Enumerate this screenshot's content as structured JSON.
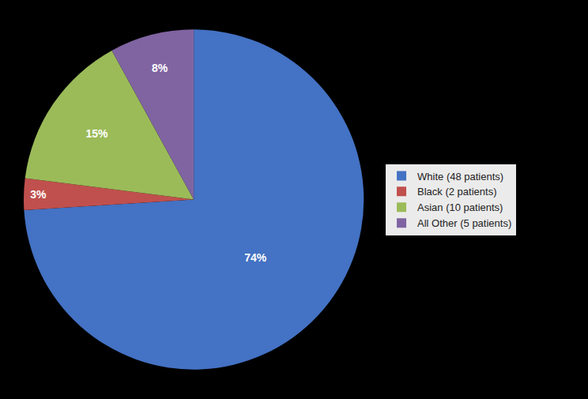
{
  "chart_data": {
    "type": "pie",
    "categories": [
      "White (48 patients)",
      "Black (2 patients)",
      "Asian (10 patients)",
      "All Other (5 patients)"
    ],
    "values": [
      74,
      3,
      15,
      8
    ],
    "value_labels": [
      "74%",
      "3%",
      "15%",
      "8%"
    ],
    "colors": [
      "#4472C4",
      "#C0504D",
      "#9BBB59",
      "#8064A2"
    ],
    "data_labels": true,
    "legend": "right"
  }
}
